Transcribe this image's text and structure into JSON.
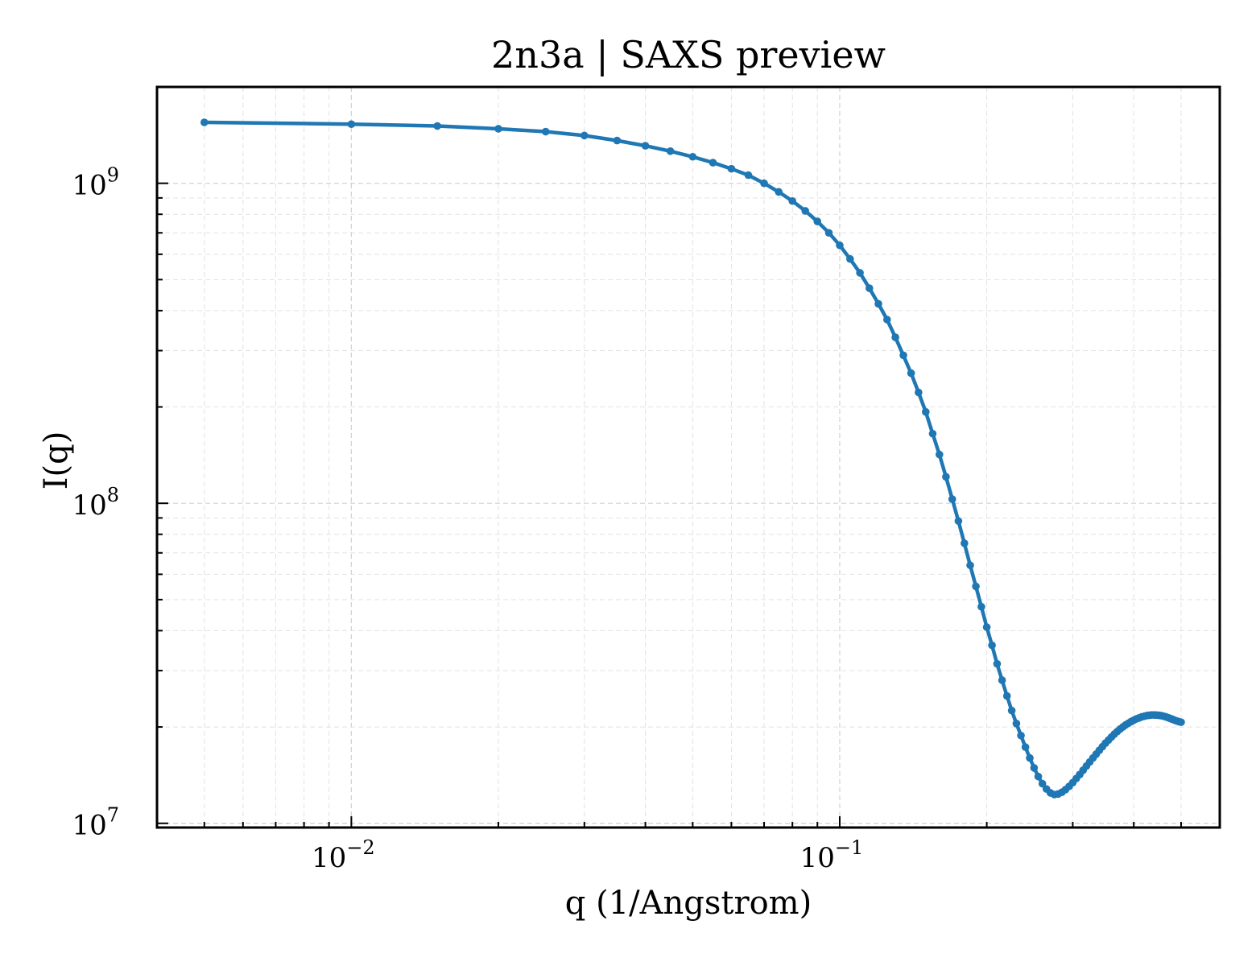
{
  "chart_data": {
    "type": "line",
    "title": "2n3a | SAXS preview",
    "xlabel": "q (1/Angstrom)",
    "ylabel": "I(q)",
    "xscale": "log",
    "yscale": "log",
    "xlim": [
      0.004,
      0.6
    ],
    "ylim": [
      9700000,
      2000000000
    ],
    "grid": true,
    "legend": "none",
    "xticks": [
      {
        "base": "10",
        "exp": "−2",
        "value": 0.01
      },
      {
        "base": "10",
        "exp": "−1",
        "value": 0.1
      }
    ],
    "yticks": [
      {
        "base": "10",
        "exp": "7",
        "value": 10000000
      },
      {
        "base": "10",
        "exp": "8",
        "value": 100000000
      },
      {
        "base": "10",
        "exp": "9",
        "value": 1000000000
      }
    ],
    "series": [
      {
        "color": "#1f77b4",
        "x": [
          0.005,
          0.01,
          0.015,
          0.02,
          0.025,
          0.03,
          0.035,
          0.04,
          0.045,
          0.05,
          0.055,
          0.06,
          0.065,
          0.07,
          0.075,
          0.08,
          0.085,
          0.09,
          0.095,
          0.1,
          0.105,
          0.11,
          0.115,
          0.12,
          0.125,
          0.13,
          0.135,
          0.14,
          0.145,
          0.15,
          0.155,
          0.16,
          0.165,
          0.17,
          0.175,
          0.18,
          0.185,
          0.19,
          0.195,
          0.2,
          0.205,
          0.21,
          0.215,
          0.22,
          0.225,
          0.23,
          0.235,
          0.24,
          0.245,
          0.25,
          0.255,
          0.26,
          0.265,
          0.27,
          0.275,
          0.28,
          0.285,
          0.29,
          0.295,
          0.3,
          0.305,
          0.31,
          0.315,
          0.32,
          0.325,
          0.33,
          0.335,
          0.34,
          0.345,
          0.35,
          0.355,
          0.36,
          0.365,
          0.37,
          0.375,
          0.38,
          0.385,
          0.39,
          0.395,
          0.4,
          0.405,
          0.41,
          0.415,
          0.42,
          0.425,
          0.43,
          0.435,
          0.44,
          0.445,
          0.45,
          0.455,
          0.46,
          0.465,
          0.47,
          0.475,
          0.48,
          0.485,
          0.49,
          0.495,
          0.5
        ],
        "y": [
          1550000000,
          1530000000,
          1510000000,
          1480000000,
          1450000000,
          1410000000,
          1360000000,
          1310000000,
          1260000000,
          1210000000,
          1160000000,
          1110000000,
          1060000000,
          1000000000,
          940000000,
          880000000,
          820000000,
          760000000,
          700000000,
          640000000,
          580000000,
          525000000,
          470000000,
          420000000,
          375000000,
          330000000,
          290000000,
          255000000,
          222000000,
          193000000,
          165000000,
          142000000,
          121000000,
          103000000,
          88000000,
          75000000,
          64000000,
          55000000,
          47500000,
          41000000,
          36000000,
          31500000,
          28000000,
          25000000,
          22500000,
          20500000,
          18800000,
          17300000,
          16000000,
          14900000,
          14000000,
          13300000,
          12800000,
          12450000,
          12300000,
          12350000,
          12500000,
          12750000,
          13050000,
          13400000,
          13800000,
          14200000,
          14650000,
          15100000,
          15550000,
          16000000,
          16450000,
          16900000,
          17350000,
          17800000,
          18200000,
          18600000,
          19000000,
          19350000,
          19700000,
          20000000,
          20300000,
          20550000,
          20800000,
          21000000,
          21200000,
          21350000,
          21500000,
          21600000,
          21700000,
          21750000,
          21800000,
          21800000,
          21780000,
          21750000,
          21700000,
          21620000,
          21520000,
          21400000,
          21270000,
          21130000,
          21000000,
          20880000,
          20780000,
          20700000
        ]
      }
    ]
  }
}
